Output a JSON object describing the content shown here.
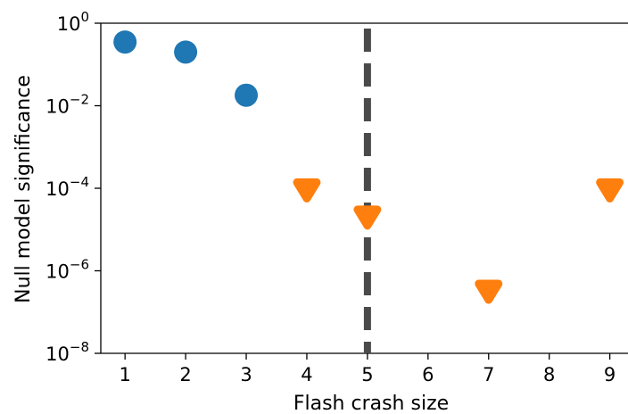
{
  "chart_data": {
    "type": "scatter",
    "xlabel": "Flash crash size",
    "ylabel": "Null model significance",
    "yscale": "log",
    "xlim": [
      0.6,
      9.3
    ],
    "ylim": [
      1e-08,
      1
    ],
    "x_ticks": [
      1,
      2,
      3,
      4,
      5,
      6,
      7,
      8,
      9
    ],
    "y_ticks": [
      {
        "value": 1e-08,
        "base": "10",
        "exp": "−8"
      },
      {
        "value": 1e-06,
        "base": "10",
        "exp": "−6"
      },
      {
        "value": 0.0001,
        "base": "10",
        "exp": "−4"
      },
      {
        "value": 0.01,
        "base": "10",
        "exp": "−2"
      },
      {
        "value": 1,
        "base": "10",
        "exp": "0"
      }
    ],
    "spines": [
      "left",
      "bottom",
      "top"
    ],
    "grid": false,
    "threshold_line": {
      "x": 5,
      "style": "dashed",
      "color": "#4a4a4a"
    },
    "series": [
      {
        "marker": "circle",
        "color": "#1f77b4",
        "x": [
          1,
          2,
          3
        ],
        "y": [
          0.35,
          0.2,
          0.018
        ]
      },
      {
        "marker": "triangle-down",
        "color": "#ff7f0e",
        "x": [
          4,
          5,
          7,
          9
        ],
        "y": [
          0.0001,
          2.2e-05,
          3.5e-07,
          0.0001
        ]
      }
    ]
  }
}
